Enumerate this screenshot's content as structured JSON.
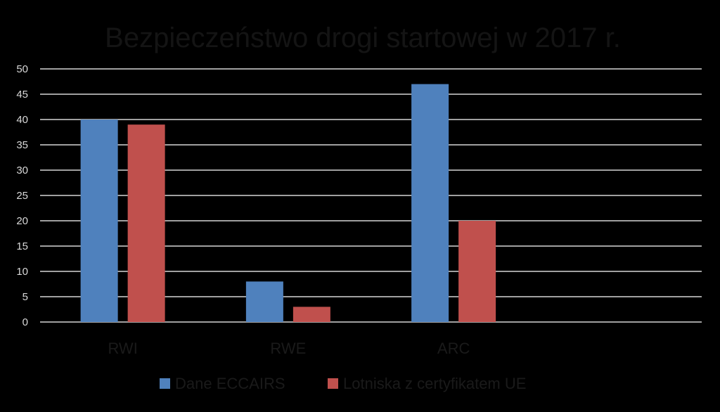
{
  "chart_data": {
    "type": "bar",
    "title": "Bezpieczeństwo drogi startowej w 2017 r.",
    "xlabel": "",
    "ylabel": "",
    "categories": [
      "RWI",
      "RWE",
      "ARC",
      ""
    ],
    "series": [
      {
        "name": "Dane ECCAIRS",
        "values": [
          40,
          8,
          47,
          null
        ],
        "color": "#4f81bd"
      },
      {
        "name": "Lotniska z certyfikatem UE",
        "values": [
          39,
          3,
          20,
          null
        ],
        "color": "#c0504d"
      }
    ],
    "ylim": [
      0,
      50
    ],
    "yticks": [
      0,
      5,
      10,
      15,
      20,
      25,
      30,
      35,
      40,
      45,
      50
    ],
    "grid": true,
    "legend": "bottom"
  }
}
